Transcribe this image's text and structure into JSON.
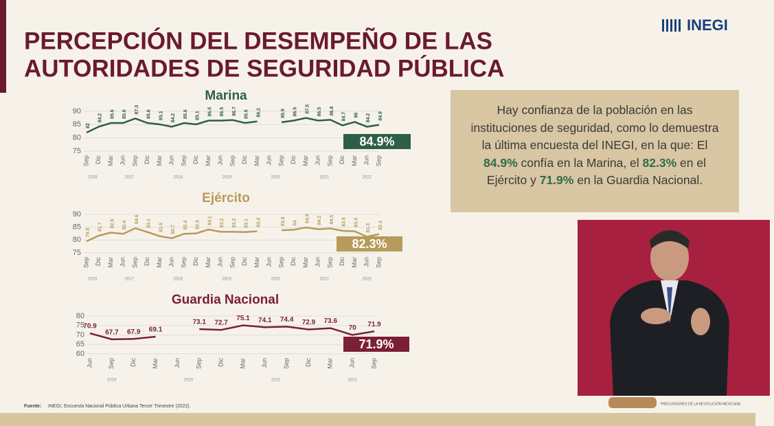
{
  "header": {
    "title_lines": [
      "PERCEPCIÓN DEL DESEMPEÑO DE LAS",
      "AUTORIDADES DE SEGURIDAD PÚBLICA"
    ],
    "logo": "INEGI"
  },
  "chart_data": [
    {
      "type": "line",
      "title": "Marina",
      "color": "#2e5e47",
      "grid": true,
      "groups": [
        {
          "label": "2016",
          "categories": [
            "Sep",
            "Dic"
          ]
        },
        {
          "label": "2017",
          "categories": [
            "Mar",
            "Jun",
            "Sep",
            "Dic"
          ]
        },
        {
          "label": "2018",
          "categories": [
            "Mar",
            "Jun",
            "Sep",
            "Dic"
          ]
        },
        {
          "label": "2019",
          "categories": [
            "Mar",
            "Jun",
            "Sep",
            "Dic"
          ]
        },
        {
          "label": "2020",
          "categories": [
            "Mar",
            "Jun",
            "Sep",
            "Dic"
          ]
        },
        {
          "label": "2021",
          "categories": [
            "Mar",
            "Jun",
            "Sep",
            "Dic"
          ]
        },
        {
          "label": "2022",
          "categories": [
            "Mar",
            "Jun",
            "Sep"
          ]
        }
      ],
      "values": [
        82,
        84.2,
        85.6,
        85.6,
        87.3,
        85.6,
        85.1,
        84.2,
        85.6,
        85.1,
        86.5,
        86.5,
        86.7,
        85.6,
        86.2,
        null,
        85.9,
        86.5,
        87.5,
        86.5,
        86.8,
        84.7,
        86,
        84.2,
        84.9
      ],
      "ylim": [
        75,
        90
      ],
      "yticks": [
        75,
        80,
        85,
        90
      ],
      "callout": "84.9%"
    },
    {
      "type": "line",
      "title": "Ejército",
      "color": "#b89a5a",
      "grid": true,
      "groups": [
        {
          "label": "2016",
          "categories": [
            "Sep",
            "Dic"
          ]
        },
        {
          "label": "2017",
          "categories": [
            "Mar",
            "Jun",
            "Sep",
            "Dic"
          ]
        },
        {
          "label": "2018",
          "categories": [
            "Mar",
            "Jun",
            "Sep",
            "Dic"
          ]
        },
        {
          "label": "2019",
          "categories": [
            "Mar",
            "Jun",
            "Sep",
            "Dic"
          ]
        },
        {
          "label": "2020",
          "categories": [
            "Mar",
            "Jun",
            "Sep",
            "Dic"
          ]
        },
        {
          "label": "2021",
          "categories": [
            "Mar",
            "Jun",
            "Sep",
            "Dic"
          ]
        },
        {
          "label": "2022",
          "categories": [
            "Mar",
            "Jun",
            "Sep"
          ]
        }
      ],
      "values": [
        79.5,
        81.7,
        82.9,
        82.4,
        84.6,
        83.1,
        81.5,
        80.7,
        82.4,
        82.6,
        84.1,
        83.2,
        83.2,
        83.1,
        83.4,
        null,
        83.8,
        84,
        84.9,
        84.2,
        84.5,
        83.6,
        83.4,
        81.3,
        82.3
      ],
      "ylim": [
        75,
        90
      ],
      "yticks": [
        75,
        80,
        85,
        90
      ],
      "callout": "82.3%"
    },
    {
      "type": "line",
      "title": "Guardia Nacional",
      "color": "#7a1f35",
      "grid": true,
      "groups": [
        {
          "label": "2019",
          "categories": [
            "Jun",
            "Sep",
            "Dic"
          ]
        },
        {
          "label": "2020",
          "categories": [
            "Mar",
            "Jun",
            "Sep",
            "Dic"
          ]
        },
        {
          "label": "2021",
          "categories": [
            "Mar",
            "Jun",
            "Sep",
            "Dic"
          ]
        },
        {
          "label": "2022",
          "categories": [
            "Mar",
            "Jun",
            "Sep"
          ]
        }
      ],
      "values": [
        70.9,
        67.7,
        67.9,
        69.1,
        null,
        73.1,
        72.7,
        75.1,
        74.1,
        74.4,
        72.9,
        73.6,
        70,
        71.9
      ],
      "ylim": [
        60,
        80
      ],
      "yticks": [
        60,
        65,
        70,
        75,
        80
      ],
      "callout": "71.9%"
    }
  ],
  "text_box": [
    "Hay confianza de la población en las instituciones de seguridad, como lo demuestra la última encuesta del INEGI, en la que:  El ",
    "84.9%",
    " confía en la Marina, el ",
    "82.3%",
    " en el Ejército y ",
    "71.9%",
    " en la  Guardia Nacional."
  ],
  "source": {
    "label": "Fuente:",
    "text": "INEGI, Encuesta Nacional Pública Urbana Tercer Trimestre (2022)."
  },
  "video_caption": "PRECURSORES DE LA REVOLUCIÓN MEXICANA"
}
